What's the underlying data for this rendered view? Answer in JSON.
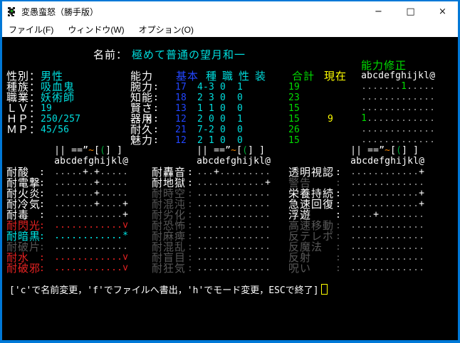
{
  "window": {
    "title": "変愚蛮怒（勝手版）",
    "controls": {
      "minimize": "−",
      "maximize": "□",
      "close": "×"
    }
  },
  "menu": {
    "items": [
      {
        "label": "ファイル(F)"
      },
      {
        "label": "ウィンドウ(W)"
      },
      {
        "label": "オプション(O)"
      }
    ]
  },
  "palette": {
    "accent": "#0078d7",
    "white": "#ffffff",
    "value_cyan": "#00dede",
    "blue": "#2246ff",
    "green": "#00dc00",
    "yellow": "#ffff00",
    "red": "#e62222",
    "immune_cyan": "#00e8e8",
    "gray_dot": "#949494",
    "gray_label": "#585858",
    "orange": "#f08000",
    "equip_green": "#00a838"
  },
  "character": {
    "name_label": "名前：",
    "name": "極めて普通の望月和一",
    "info": [
      {
        "label": "性別：",
        "value": "男性"
      },
      {
        "label": "種族：",
        "value": "吸血鬼"
      },
      {
        "label": "職業：",
        "value": "妖術師"
      },
      {
        "label": "ＬＶ：",
        "value": "19"
      },
      {
        "label": "ＨＰ：",
        "value": "250/257"
      },
      {
        "label": "ＭＰ：",
        "value": "45/56"
      }
    ]
  },
  "stats": {
    "header": {
      "ability": "能力",
      "base": "基本",
      "race": "種",
      "cls": "職",
      "personality": "性",
      "equip": "装",
      "total": "合計",
      "current": "現在",
      "mods_title": "能力修正"
    },
    "slots": "abcdefghijkl@",
    "rows": [
      {
        "label": "腕力",
        "mark": "",
        "base": "17",
        "race": "4",
        "cls": "-3",
        "pers": "0",
        "equip": "1",
        "total": "19",
        "current": "",
        "mods": ".......1....."
      },
      {
        "label": "知能",
        "mark": "",
        "base": "18",
        "race": "2",
        "cls": "3",
        "pers": "0",
        "equip": "0",
        "total": "23",
        "current": "",
        "mods": "............."
      },
      {
        "label": "賢さ",
        "mark": "",
        "base": "13",
        "race": "1",
        "cls": "1",
        "pers": "0",
        "equip": "0",
        "total": "15",
        "current": "",
        "mods": "............."
      },
      {
        "label": "器用",
        "mark": "x",
        "base": "12",
        "race": "2",
        "cls": "0",
        "pers": "0",
        "equip": "1",
        "total": "15",
        "current": "9",
        "mods": "1............"
      },
      {
        "label": "耐久",
        "mark": "",
        "base": "21",
        "race": "7",
        "cls": "-2",
        "pers": "0",
        "equip": "0",
        "total": "26",
        "current": "",
        "mods": "............."
      },
      {
        "label": "魅力",
        "mark": "",
        "base": "12",
        "race": "2",
        "cls": "1",
        "pers": "0",
        "equip": "0",
        "total": "15",
        "current": "",
        "mods": "............."
      }
    ]
  },
  "equippy": {
    "symbols": "|| ==”~[(] ] ",
    "color_overrides": {
      "6": "orange",
      "8": "equip_green"
    }
  },
  "resists": {
    "tables": [
      {
        "rows": [
          {
            "label": "耐酸",
            "cells": ".....+.+.....",
            "type": "active"
          },
          {
            "label": "耐電撃",
            "cells": ".......+.....",
            "type": "active"
          },
          {
            "label": "耐火炎",
            "cells": ".......+.....",
            "type": "active"
          },
          {
            "label": "耐冷気",
            "cells": ".......+....+",
            "type": "active"
          },
          {
            "label": "耐毒",
            "cells": "............+",
            "type": "active"
          },
          {
            "label": "耐閃光",
            "cells": "............v",
            "type": "vuln"
          },
          {
            "label": "耐暗黒",
            "cells": "............*",
            "type": "immune"
          },
          {
            "label": "耐破片",
            "cells": ".............",
            "type": "none"
          },
          {
            "label": "耐水",
            "cells": "............v",
            "type": "vuln"
          },
          {
            "label": "耐破邪",
            "cells": "............v",
            "type": "vuln"
          }
        ]
      },
      {
        "rows": [
          {
            "label": "耐轟音",
            "cells": "...+.........",
            "type": "active"
          },
          {
            "label": "耐地獄",
            "cells": "............+",
            "type": "active"
          },
          {
            "label": "耐時空",
            "cells": ".............",
            "type": "none"
          },
          {
            "label": "耐混沌",
            "cells": ".............",
            "type": "none"
          },
          {
            "label": "耐劣化",
            "cells": ".............",
            "type": "none"
          },
          {
            "label": "耐恐怖",
            "cells": ".............",
            "type": "none"
          },
          {
            "label": "耐麻痺",
            "cells": ".............",
            "type": "none"
          },
          {
            "label": "耐混乱",
            "cells": ".............",
            "type": "none"
          },
          {
            "label": "耐盲目",
            "cells": ".............",
            "type": "none"
          },
          {
            "label": "耐狂気",
            "cells": ".............",
            "type": "none"
          }
        ]
      },
      {
        "rows": [
          {
            "label": "透明視認",
            "cells": "............+",
            "type": "active"
          },
          {
            "label": "警告",
            "cells": ".............",
            "type": "none"
          },
          {
            "label": "栄養持続",
            "cells": "............+",
            "type": "active"
          },
          {
            "label": "急速回復",
            "cells": "............+",
            "type": "active"
          },
          {
            "label": "浮遊",
            "cells": "....+........",
            "type": "active"
          },
          {
            "label": "高速移動",
            "cells": ".............",
            "type": "none"
          },
          {
            "label": "反テレポ",
            "cells": ".............",
            "type": "none"
          },
          {
            "label": "反魔法",
            "cells": ".............",
            "type": "none"
          },
          {
            "label": "反射",
            "cells": ".............",
            "type": "none"
          },
          {
            "label": "呪い",
            "cells": ".............",
            "type": "none"
          }
        ]
      }
    ]
  },
  "statusbar": {
    "help": "['c'で名前変更，'f'でファイルへ書出，'h'でモード変更，ESCで終了]"
  }
}
